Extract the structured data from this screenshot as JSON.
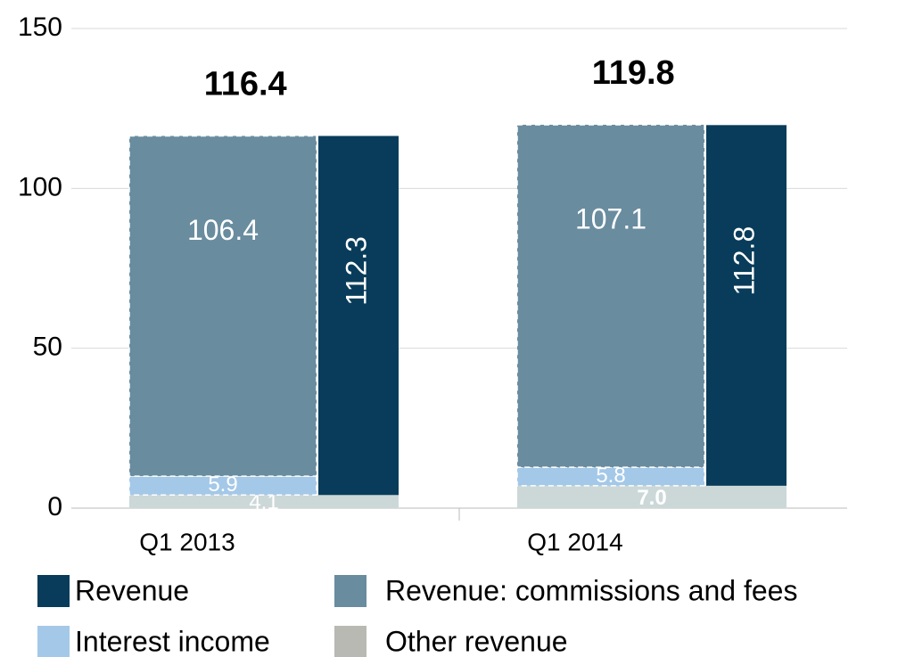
{
  "chart_data": {
    "type": "bar",
    "categories": [
      "Q1 2013",
      "Q1 2014"
    ],
    "series": [
      {
        "name": "Revenue",
        "color": "#083c5a",
        "values": [
          112.3,
          112.8
        ]
      },
      {
        "name": "Revenue: commissions and fees",
        "color": "#698c9f",
        "values": [
          106.4,
          107.1
        ]
      },
      {
        "name": "Interest income",
        "color": "#a4c8e8",
        "values": [
          5.9,
          5.8
        ]
      },
      {
        "name": "Other revenue",
        "color": "#ccd8d8",
        "values": [
          4.1,
          7.0
        ],
        "value_labels": [
          "4.1",
          "7.0"
        ]
      }
    ],
    "totals": [
      116.4,
      119.8
    ],
    "ylim": [
      0,
      150
    ],
    "yticks": [
      0,
      50,
      100,
      150
    ],
    "grid": true
  }
}
